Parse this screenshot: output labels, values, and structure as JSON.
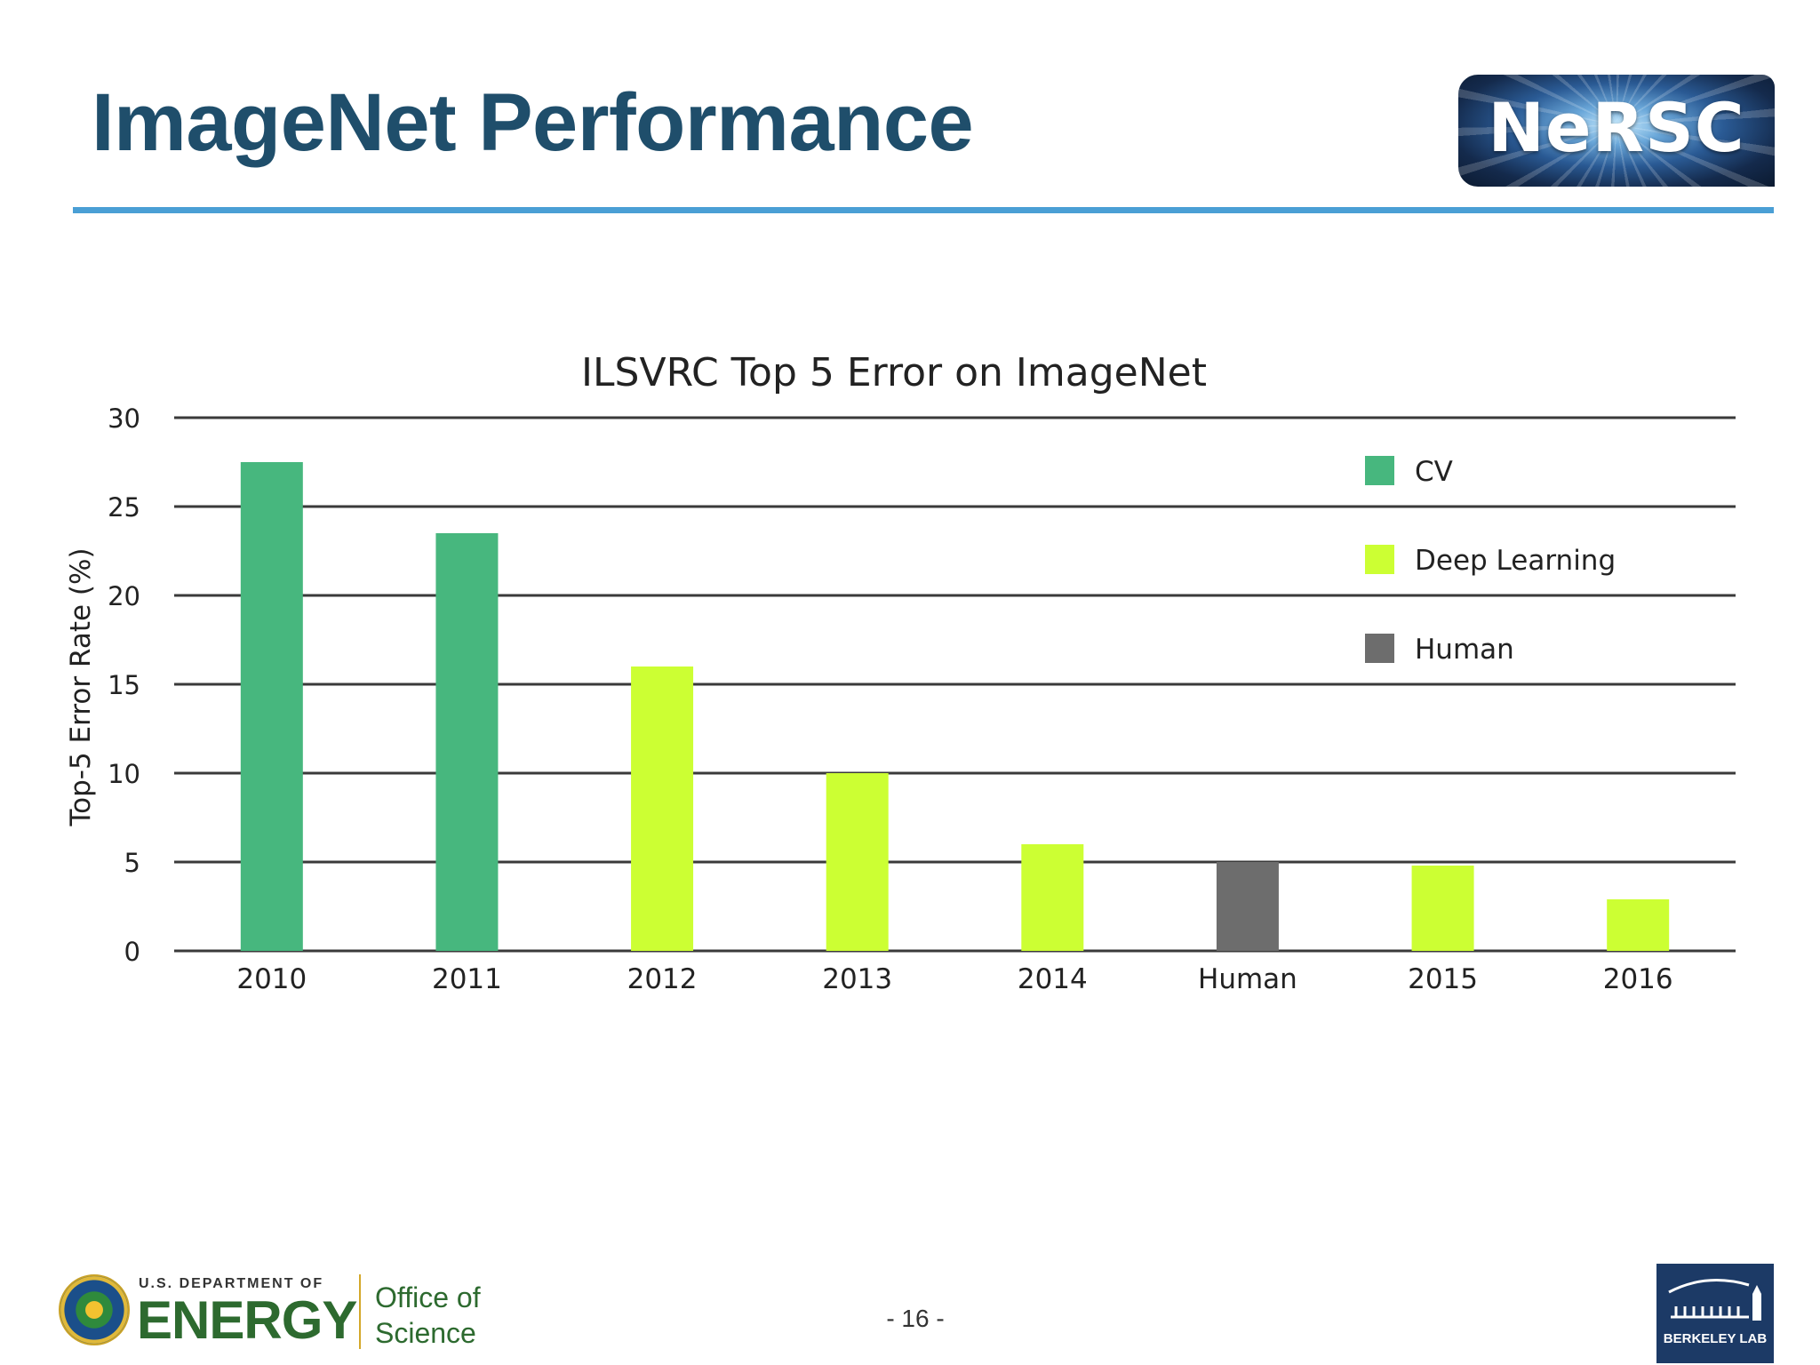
{
  "slide": {
    "title": "ImageNet Performance",
    "page_number": "- 16 -"
  },
  "logos": {
    "nersc": "NeRSC",
    "doe_department": "U.S. DEPARTMENT OF",
    "doe_energy": "ENERGY",
    "doe_office": "Office of",
    "doe_science": "Science",
    "berkeley": "BERKELEY LAB"
  },
  "colors": {
    "title": "#1f4e6b",
    "rule": "#4a9fd5",
    "cv": "#47b77e",
    "deep_learning": "#ccff33",
    "human": "#6d6d6d",
    "gridline": "#3a3a3a"
  },
  "chart_data": {
    "type": "bar",
    "title": "ILSVRC Top 5 Error on ImageNet",
    "xlabel": "",
    "ylabel": "Top-5 Error Rate (%)",
    "ylim": [
      0,
      30
    ],
    "yticks": [
      0,
      5,
      10,
      15,
      20,
      25,
      30
    ],
    "grid": true,
    "legend_position": "top-right",
    "categories": [
      "2010",
      "2011",
      "2012",
      "2013",
      "2014",
      "Human",
      "2015",
      "2016"
    ],
    "values": [
      27.5,
      23.5,
      16,
      10,
      6,
      5,
      4.8,
      2.9
    ],
    "groups": [
      "CV",
      "CV",
      "Deep Learning",
      "Deep Learning",
      "Deep Learning",
      "Human",
      "Deep Learning",
      "Deep Learning"
    ],
    "legend": [
      {
        "name": "CV",
        "color": "#47b77e"
      },
      {
        "name": "Deep Learning",
        "color": "#ccff33"
      },
      {
        "name": "Human",
        "color": "#6d6d6d"
      }
    ]
  }
}
